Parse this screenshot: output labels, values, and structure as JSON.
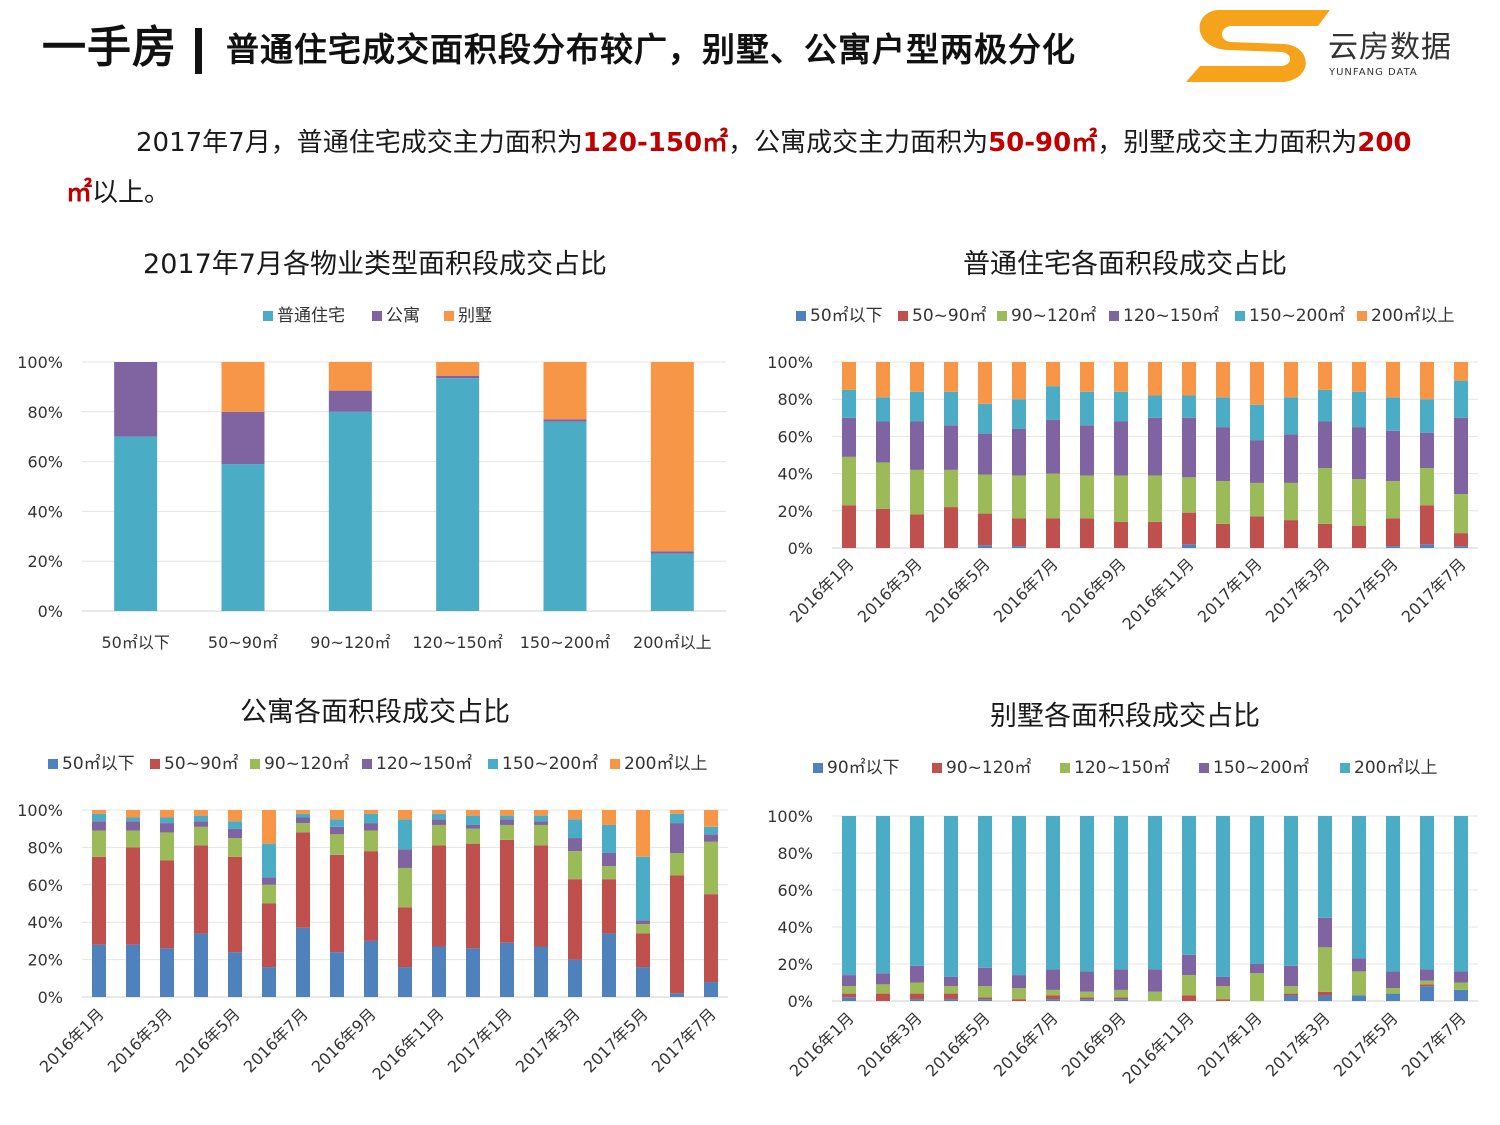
{
  "header": {
    "title_main": "一手房",
    "title_sub": "普通住宅成交面积段分布较广，别墅、公寓户型两极分化",
    "logo_name": "云房数据",
    "logo_en": "YUNFANG DATA"
  },
  "summary": {
    "part1": "2017年7月，普通住宅成交主力面积为",
    "hl1": "120-150㎡",
    "part2": "，公寓成交主力面积为",
    "hl2": "50-90㎡",
    "part3": "，别墅成交主力面积为",
    "hl3": "200㎡",
    "part4": "以上。"
  },
  "colors": {
    "blue": "#4f81bd",
    "red": "#c0504d",
    "green": "#9bbb59",
    "purple": "#8064a2",
    "cyan": "#4bacc6",
    "orange": "#f79646",
    "accent_red": "#c00000",
    "logo_orange": "#f5a31a"
  },
  "chart_data": [
    {
      "id": "chart1",
      "type": "bar",
      "stacked": true,
      "title": "2017年7月各物业类型面积段成交占比",
      "categories": [
        "50㎡以下",
        "50~90㎡",
        "90~120㎡",
        "120~150㎡",
        "150~200㎡",
        "200㎡以上"
      ],
      "series": [
        {
          "name": "普通住宅",
          "color": "#4bacc6",
          "values": [
            70,
            59,
            80,
            93.5,
            76,
            23
          ]
        },
        {
          "name": "公寓",
          "color": "#8064a2",
          "values": [
            30,
            21,
            8.5,
            1,
            1,
            1
          ]
        },
        {
          "name": "别墅",
          "color": "#f79646",
          "values": [
            0,
            20,
            11.5,
            5.5,
            23,
            76
          ]
        }
      ],
      "y_ticks": [
        "0%",
        "20%",
        "40%",
        "60%",
        "80%",
        "100%"
      ],
      "ylim": [
        0,
        100
      ],
      "legend_position": "top"
    },
    {
      "id": "chart2",
      "type": "bar",
      "stacked": true,
      "title": "普通住宅各面积段成交占比",
      "categories": [
        "2016年1月",
        "2016年2月",
        "2016年3月",
        "2016年4月",
        "2016年5月",
        "2016年6月",
        "2016年7月",
        "2016年8月",
        "2016年9月",
        "2016年10月",
        "2016年11月",
        "2016年12月",
        "2017年1月",
        "2017年2月",
        "2017年3月",
        "2017年4月",
        "2017年5月",
        "2017年6月",
        "2017年7月"
      ],
      "tick_labels": [
        "2016年1月",
        "",
        "2016年3月",
        "",
        "2016年5月",
        "",
        "2016年7月",
        "",
        "2016年9月",
        "",
        "2016年11月",
        "",
        "2017年1月",
        "",
        "2017年3月",
        "",
        "2017年5月",
        "",
        "2017年7月"
      ],
      "series": [
        {
          "name": "50㎡以下",
          "color": "#4f81bd",
          "values": [
            0,
            0,
            0,
            0,
            1.5,
            1,
            0,
            0,
            0,
            0,
            2,
            0,
            0,
            0,
            0,
            0,
            1,
            2,
            1
          ]
        },
        {
          "name": "50~90㎡",
          "color": "#c0504d",
          "values": [
            23,
            21,
            18,
            22,
            17,
            15,
            16,
            16,
            14,
            14,
            17,
            13,
            17,
            15,
            13,
            12,
            15,
            21,
            7
          ]
        },
        {
          "name": "90~120㎡",
          "color": "#9bbb59",
          "values": [
            26,
            25,
            24,
            20,
            21,
            23,
            24,
            23,
            25,
            25,
            19,
            23,
            18,
            20,
            30,
            25,
            20,
            20,
            21
          ]
        },
        {
          "name": "120~150㎡",
          "color": "#8064a2",
          "values": [
            21,
            22,
            26,
            24,
            22,
            25,
            29,
            27,
            29,
            31,
            32,
            29,
            23,
            26,
            25,
            28,
            27,
            19,
            41
          ]
        },
        {
          "name": "150~200㎡",
          "color": "#4bacc6",
          "values": [
            15,
            13,
            16,
            18,
            16,
            16,
            18,
            18,
            16,
            12,
            12,
            16,
            19,
            20,
            17,
            19,
            18,
            18,
            20
          ]
        },
        {
          "name": "200㎡以上",
          "color": "#f79646",
          "values": [
            15,
            19,
            16,
            16,
            22.5,
            20,
            13,
            16,
            16,
            18,
            18,
            19,
            23,
            19,
            15,
            16,
            19,
            20,
            10
          ]
        }
      ],
      "y_ticks": [
        "0%",
        "20%",
        "40%",
        "60%",
        "80%",
        "100%"
      ],
      "ylim": [
        0,
        100
      ],
      "legend_position": "top"
    },
    {
      "id": "chart3",
      "type": "bar",
      "stacked": true,
      "title": "公寓各面积段成交占比",
      "categories": [
        "2016年1月",
        "2016年2月",
        "2016年3月",
        "2016年4月",
        "2016年5月",
        "2016年6月",
        "2016年7月",
        "2016年8月",
        "2016年9月",
        "2016年10月",
        "2016年11月",
        "2016年12月",
        "2017年1月",
        "2017年2月",
        "2017年3月",
        "2017年4月",
        "2017年5月",
        "2017年6月",
        "2017年7月"
      ],
      "tick_labels": [
        "2016年1月",
        "",
        "2016年3月",
        "",
        "2016年5月",
        "",
        "2016年7月",
        "",
        "2016年9月",
        "",
        "2016年11月",
        "",
        "2017年1月",
        "",
        "2017年3月",
        "",
        "2017年5月",
        "",
        "2017年7月"
      ],
      "series": [
        {
          "name": "50㎡以下",
          "color": "#4f81bd",
          "values": [
            28,
            28,
            26,
            34,
            24,
            16,
            37,
            24,
            30,
            16,
            27,
            26,
            29,
            27,
            20,
            34,
            16,
            2,
            8
          ]
        },
        {
          "name": "50~90㎡",
          "color": "#c0504d",
          "values": [
            47,
            52,
            47,
            47,
            51,
            34,
            51,
            52,
            48,
            32,
            54,
            56,
            55,
            54,
            43,
            29,
            18,
            63,
            47
          ]
        },
        {
          "name": "90~120㎡",
          "color": "#9bbb59",
          "values": [
            14,
            9,
            15,
            10,
            10,
            10,
            5,
            11,
            11,
            21,
            11,
            8,
            8,
            11,
            15,
            7,
            5,
            12,
            28
          ]
        },
        {
          "name": "120~150㎡",
          "color": "#8064a2",
          "values": [
            5,
            5,
            5,
            3,
            5,
            4,
            3,
            4,
            4,
            10,
            3,
            2,
            3,
            2,
            7,
            7,
            2,
            16,
            4
          ]
        },
        {
          "name": "150~200㎡",
          "color": "#4bacc6",
          "values": [
            4,
            2,
            3,
            3,
            4,
            18,
            2,
            4,
            5,
            16,
            3,
            5,
            2,
            3,
            10,
            15,
            34,
            5,
            4
          ]
        },
        {
          "name": "200㎡以上",
          "color": "#f79646",
          "values": [
            2,
            4,
            4,
            3,
            6,
            18,
            2,
            5,
            2,
            5,
            2,
            3,
            3,
            3,
            5,
            8,
            25,
            2,
            9
          ]
        }
      ],
      "y_ticks": [
        "0%",
        "20%",
        "40%",
        "60%",
        "80%",
        "100%"
      ],
      "ylim": [
        0,
        100
      ],
      "legend_position": "top"
    },
    {
      "id": "chart4",
      "type": "bar",
      "stacked": true,
      "title": "别墅各面积段成交占比",
      "categories": [
        "2016年1月",
        "2016年2月",
        "2016年3月",
        "2016年4月",
        "2016年5月",
        "2016年6月",
        "2016年7月",
        "2016年8月",
        "2016年9月",
        "2016年10月",
        "2016年11月",
        "2016年12月",
        "2017年1月",
        "2017年2月",
        "2017年3月",
        "2017年4月",
        "2017年5月",
        "2017年6月",
        "2017年7月"
      ],
      "tick_labels": [
        "2016年1月",
        "",
        "2016年3月",
        "",
        "2016年5月",
        "",
        "2016年7月",
        "",
        "2016年9月",
        "",
        "2016年11月",
        "",
        "2017年1月",
        "",
        "2017年3月",
        "",
        "2017年5月",
        "",
        "2017年7月"
      ],
      "series": [
        {
          "name": "90㎡以下",
          "color": "#4f81bd",
          "values": [
            2,
            0,
            1,
            1,
            1,
            0,
            1,
            1,
            1,
            0,
            0,
            0,
            0,
            3,
            3,
            3,
            4,
            8,
            6
          ]
        },
        {
          "name": "90~120㎡",
          "color": "#c0504d",
          "values": [
            2,
            4,
            3,
            3,
            1,
            1,
            2,
            1,
            1,
            0,
            3,
            1,
            0,
            1,
            2,
            0,
            0,
            1,
            0
          ]
        },
        {
          "name": "120~150㎡",
          "color": "#9bbb59",
          "values": [
            4,
            5,
            6,
            4,
            6,
            6,
            3,
            3,
            4,
            5,
            11,
            7,
            15,
            4,
            24,
            13,
            3,
            2,
            4
          ]
        },
        {
          "name": "150~200㎡",
          "color": "#8064a2",
          "values": [
            6,
            6,
            9,
            5,
            10,
            7,
            11,
            11,
            11,
            12,
            11,
            5,
            5,
            11,
            16,
            7,
            9,
            6,
            6
          ]
        },
        {
          "name": "200㎡以上",
          "color": "#4bacc6",
          "values": [
            86,
            85,
            81,
            87,
            82,
            86,
            83,
            84,
            83,
            83,
            75,
            87,
            80,
            81,
            55,
            77,
            84,
            83,
            84
          ]
        }
      ],
      "y_ticks": [
        "0%",
        "20%",
        "40%",
        "60%",
        "80%",
        "100%"
      ],
      "ylim": [
        0,
        100
      ],
      "legend_position": "top"
    }
  ]
}
